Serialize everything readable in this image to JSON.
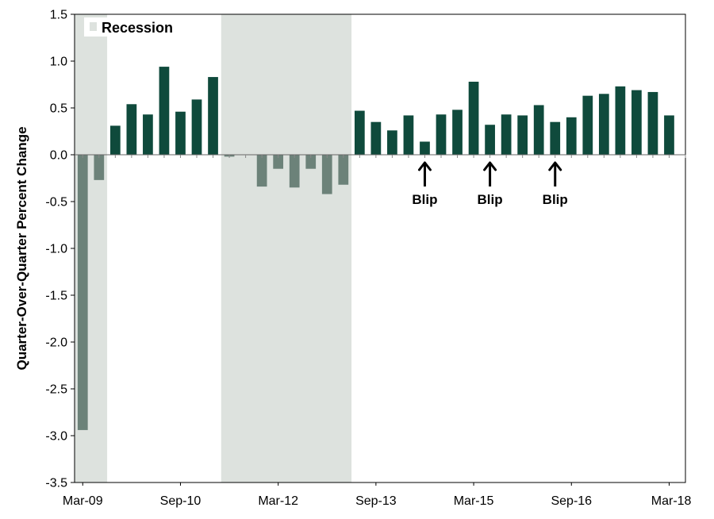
{
  "chart_data": {
    "type": "bar",
    "ylabel": "Quarter-Over-Quarter Percent Change",
    "xlabel": "",
    "ylim": [
      -3.5,
      1.5
    ],
    "yticks": [
      "1.5",
      "1.0",
      "0.5",
      "0.0",
      "-0.5",
      "-1.0",
      "-1.5",
      "-2.0",
      "-2.5",
      "-3.0",
      "-3.5"
    ],
    "xticks": [
      {
        "label": "Mar-09",
        "index": 0
      },
      {
        "label": "Sep-10",
        "index": 6
      },
      {
        "label": "Mar-12",
        "index": 12
      },
      {
        "label": "Sep-13",
        "index": 18
      },
      {
        "label": "Mar-15",
        "index": 24
      },
      {
        "label": "Sep-16",
        "index": 30
      },
      {
        "label": "Mar-18",
        "index": 36
      }
    ],
    "categories": [
      "Mar-09",
      "Jun-09",
      "Sep-09",
      "Dec-09",
      "Mar-10",
      "Jun-10",
      "Sep-10",
      "Dec-10",
      "Mar-11",
      "Jun-11",
      "Sep-11",
      "Dec-11",
      "Mar-12",
      "Jun-12",
      "Sep-12",
      "Dec-12",
      "Mar-13",
      "Jun-13",
      "Sep-13",
      "Dec-13",
      "Mar-14",
      "Jun-14",
      "Sep-14",
      "Dec-14",
      "Mar-15",
      "Jun-15",
      "Sep-15",
      "Dec-15",
      "Mar-16",
      "Jun-16",
      "Sep-16",
      "Dec-16",
      "Mar-17",
      "Jun-17",
      "Sep-17",
      "Dec-17",
      "Mar-18"
    ],
    "values": [
      -2.94,
      -0.27,
      0.31,
      0.54,
      0.43,
      0.94,
      0.46,
      0.59,
      0.83,
      -0.02,
      0.0,
      -0.34,
      -0.15,
      -0.35,
      -0.15,
      -0.42,
      -0.32,
      0.47,
      0.35,
      0.26,
      0.42,
      0.14,
      0.43,
      0.48,
      0.78,
      0.32,
      0.43,
      0.42,
      0.53,
      0.35,
      0.4,
      0.63,
      0.65,
      0.73,
      0.69,
      0.67,
      0.42
    ],
    "recessions": [
      {
        "start_index": 0,
        "end_index": 1
      },
      {
        "start_index": 9,
        "end_index": 16
      }
    ],
    "legend": {
      "label": "Recession",
      "position": "top-left"
    },
    "annotations": [
      {
        "text": "Blip",
        "index": 21
      },
      {
        "text": "Blip",
        "index": 25
      },
      {
        "text": "Blip",
        "index": 29
      }
    ],
    "colors": {
      "positive": "#0f4a3c",
      "negative": "#6c8279",
      "recession": "#dde2de"
    }
  }
}
